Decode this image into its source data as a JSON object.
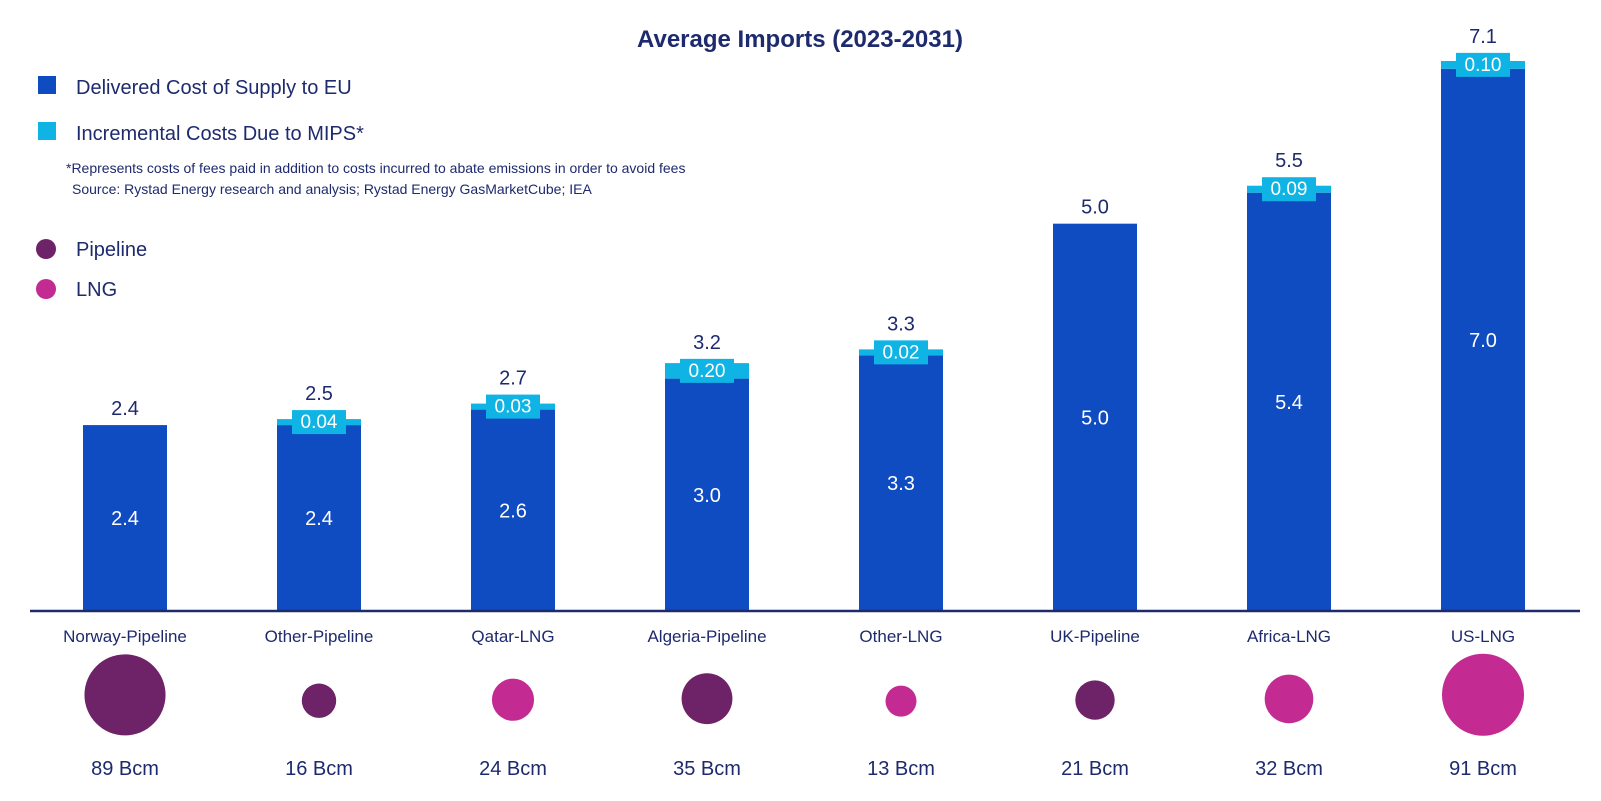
{
  "colors": {
    "delivered": "#0f4cc1",
    "incremental": "#10b4e4",
    "pipeline": "#6e2267",
    "lng": "#c32b92",
    "text": "#1e2a6e",
    "axis": "#1e2a6e"
  },
  "legend": {
    "delivered": "Delivered Cost of Supply to EU",
    "incremental": "Incremental Costs Due to MIPS*",
    "pipeline": "Pipeline",
    "lng": "LNG"
  },
  "notes": {
    "footnote": "*Represents costs of fees paid in addition to costs incurred to abate emissions in order to avoid fees",
    "source": "Source: Rystad Energy research and analysis; Rystad Energy GasMarketCube; IEA"
  },
  "chart_data": {
    "type": "bar",
    "stacked": true,
    "title": "Average Imports (2023-2031)",
    "xlabel": "",
    "ylabel": "",
    "ylim": [
      0,
      7.1
    ],
    "grid": false,
    "legend_position": "top-left",
    "categories": [
      "Norway-Pipeline",
      "Other-Pipeline",
      "Qatar-LNG",
      "Algeria-Pipeline",
      "Other-LNG",
      "UK-Pipeline",
      "Africa-LNG",
      "US-LNG"
    ],
    "series": [
      {
        "name": "Delivered Cost of Supply to EU",
        "values": [
          2.4,
          2.4,
          2.6,
          3.0,
          3.3,
          5.0,
          5.4,
          7.0
        ],
        "labels": [
          "2.4",
          "2.4",
          "2.6",
          "3.0",
          "3.3",
          "5.0",
          "5.4",
          "7.0"
        ]
      },
      {
        "name": "Incremental Costs Due to MIPS*",
        "values": [
          null,
          0.04,
          0.03,
          0.2,
          0.02,
          null,
          0.09,
          0.1
        ],
        "labels": [
          null,
          "0.04",
          "0.03",
          "0.20",
          "0.02",
          null,
          "0.09",
          "0.10"
        ]
      }
    ],
    "totals": [
      "2.4",
      "2.5",
      "2.7",
      "3.2",
      "3.3",
      "5.0",
      "5.5",
      "7.1"
    ],
    "volumes": {
      "unit": "Bcm",
      "values": [
        89,
        16,
        24,
        35,
        13,
        21,
        32,
        91
      ],
      "labels": [
        "89 Bcm",
        "16 Bcm",
        "24 Bcm",
        "35 Bcm",
        "13 Bcm",
        "21 Bcm",
        "32 Bcm",
        "91 Bcm"
      ],
      "types": [
        "Pipeline",
        "Pipeline",
        "LNG",
        "Pipeline",
        "LNG",
        "Pipeline",
        "LNG",
        "LNG"
      ]
    }
  }
}
